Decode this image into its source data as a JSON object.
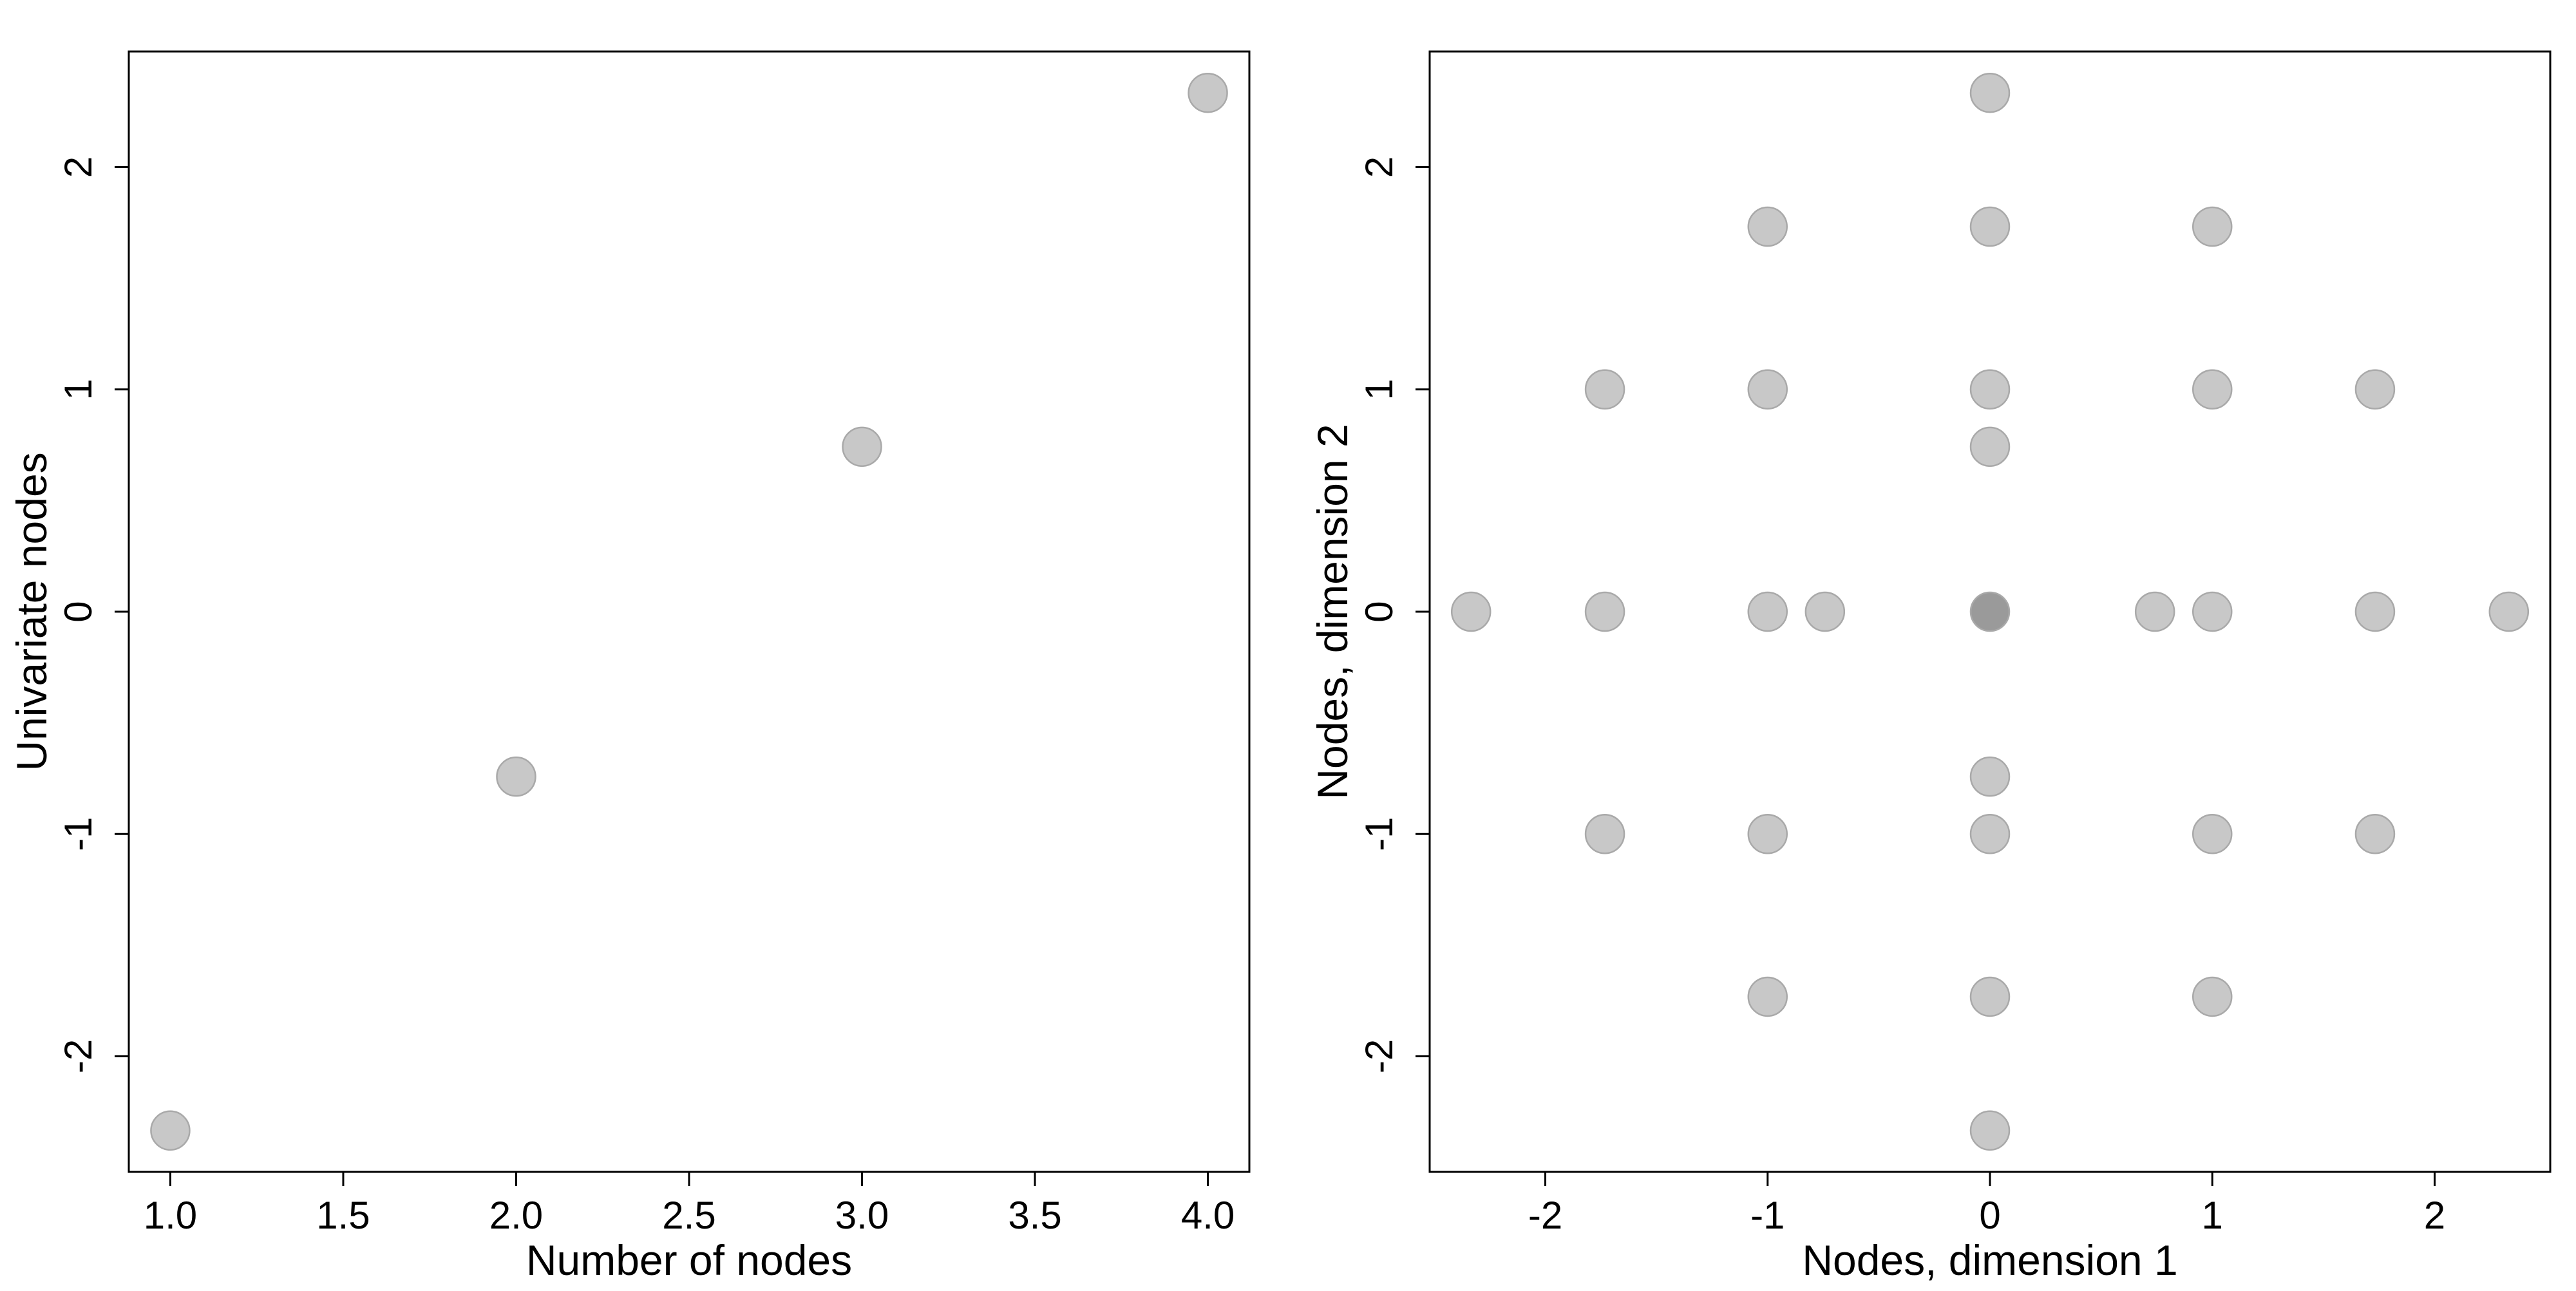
{
  "chart_data": [
    {
      "type": "scatter",
      "title": "",
      "xlabel": "Number of nodes",
      "ylabel": "Univariate nodes",
      "xlim": [
        0.88,
        4.12
      ],
      "ylim": [
        -2.52,
        2.52
      ],
      "xticks": [
        1.0,
        1.5,
        2.0,
        2.5,
        3.0,
        3.5,
        4.0
      ],
      "xtick_labels": [
        "1.0",
        "1.5",
        "2.0",
        "2.5",
        "3.0",
        "3.5",
        "4.0"
      ],
      "yticks": [
        -2,
        -1,
        0,
        1,
        2
      ],
      "ytick_labels": [
        "-2",
        "-1",
        "0",
        "1",
        "2"
      ],
      "grid": false,
      "point_color": "#c8c8c8",
      "points": [
        {
          "x": 1.0,
          "y": -2.334
        },
        {
          "x": 2.0,
          "y": -0.742
        },
        {
          "x": 3.0,
          "y": 0.742
        },
        {
          "x": 4.0,
          "y": 2.334
        }
      ]
    },
    {
      "type": "scatter",
      "title": "",
      "xlabel": "Nodes, dimension 1",
      "ylabel": "Nodes, dimension 2",
      "xlim": [
        -2.52,
        2.52
      ],
      "ylim": [
        -2.52,
        2.52
      ],
      "xticks": [
        -2,
        -1,
        0,
        1,
        2
      ],
      "xtick_labels": [
        "-2",
        "-1",
        "0",
        "1",
        "2"
      ],
      "yticks": [
        -2,
        -1,
        0,
        1,
        2
      ],
      "ytick_labels": [
        "-2",
        "-1",
        "0",
        "1",
        "2"
      ],
      "grid": false,
      "point_color": "#c8c8c8",
      "overlap_point_color": "#9a9a9a",
      "points": [
        {
          "x": 0,
          "y": 2.334
        },
        {
          "x": -1,
          "y": 1.732
        },
        {
          "x": 0,
          "y": 1.732
        },
        {
          "x": 1,
          "y": 1.732
        },
        {
          "x": -1.732,
          "y": 1
        },
        {
          "x": -1,
          "y": 1
        },
        {
          "x": 0,
          "y": 1
        },
        {
          "x": 1,
          "y": 1
        },
        {
          "x": 1.732,
          "y": 1
        },
        {
          "x": 0,
          "y": 0.742
        },
        {
          "x": -2.334,
          "y": 0
        },
        {
          "x": -1.732,
          "y": 0
        },
        {
          "x": -1,
          "y": 0
        },
        {
          "x": -0.742,
          "y": 0
        },
        {
          "x": 0,
          "y": 0,
          "overlap": true
        },
        {
          "x": 0.742,
          "y": 0
        },
        {
          "x": 1,
          "y": 0
        },
        {
          "x": 1.732,
          "y": 0
        },
        {
          "x": 2.334,
          "y": 0
        },
        {
          "x": 0,
          "y": -0.742
        },
        {
          "x": -1.732,
          "y": -1
        },
        {
          "x": -1,
          "y": -1
        },
        {
          "x": 0,
          "y": -1
        },
        {
          "x": 1,
          "y": -1
        },
        {
          "x": 1.732,
          "y": -1
        },
        {
          "x": -1,
          "y": -1.732
        },
        {
          "x": 0,
          "y": -1.732
        },
        {
          "x": 1,
          "y": -1.732
        },
        {
          "x": 0,
          "y": -2.334
        }
      ]
    }
  ]
}
